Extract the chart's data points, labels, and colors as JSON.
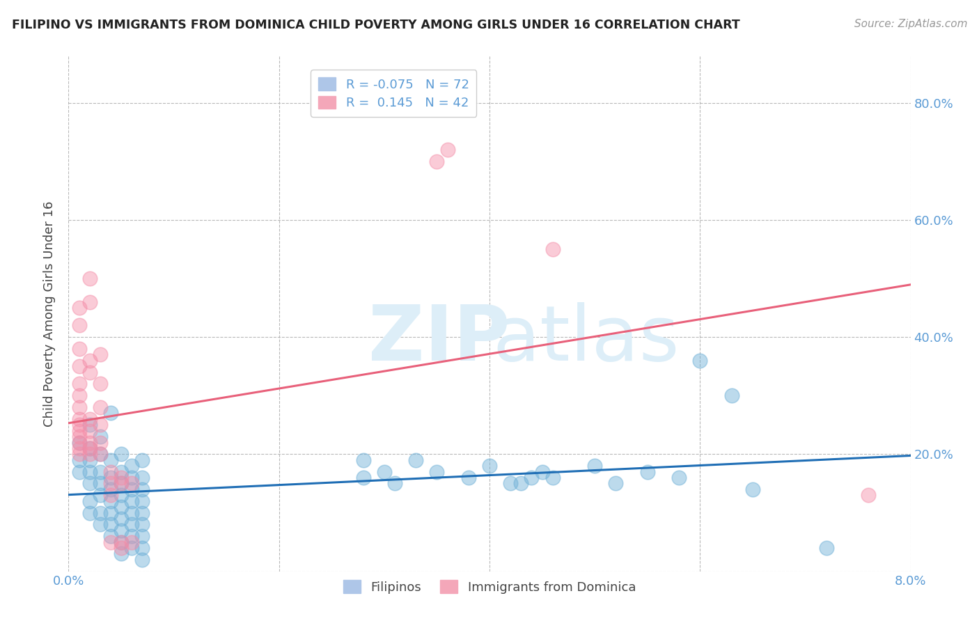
{
  "title": "FILIPINO VS IMMIGRANTS FROM DOMINICA CHILD POVERTY AMONG GIRLS UNDER 16 CORRELATION CHART",
  "source": "Source: ZipAtlas.com",
  "ylabel": "Child Poverty Among Girls Under 16",
  "xlim": [
    0.0,
    0.08
  ],
  "ylim": [
    0.0,
    0.88
  ],
  "filipino_color": "#6baed6",
  "dominica_color": "#f48ca7",
  "filipino_line_color": "#1f6eb5",
  "dominica_line_color": "#e8607a",
  "background_color": "#ffffff",
  "filipino_points": [
    [
      0.001,
      0.22
    ],
    [
      0.001,
      0.19
    ],
    [
      0.001,
      0.17
    ],
    [
      0.002,
      0.25
    ],
    [
      0.002,
      0.21
    ],
    [
      0.002,
      0.19
    ],
    [
      0.002,
      0.17
    ],
    [
      0.002,
      0.15
    ],
    [
      0.002,
      0.12
    ],
    [
      0.002,
      0.1
    ],
    [
      0.003,
      0.23
    ],
    [
      0.003,
      0.2
    ],
    [
      0.003,
      0.17
    ],
    [
      0.003,
      0.15
    ],
    [
      0.003,
      0.13
    ],
    [
      0.003,
      0.1
    ],
    [
      0.003,
      0.08
    ],
    [
      0.004,
      0.27
    ],
    [
      0.004,
      0.19
    ],
    [
      0.004,
      0.16
    ],
    [
      0.004,
      0.14
    ],
    [
      0.004,
      0.12
    ],
    [
      0.004,
      0.1
    ],
    [
      0.004,
      0.08
    ],
    [
      0.004,
      0.06
    ],
    [
      0.005,
      0.2
    ],
    [
      0.005,
      0.17
    ],
    [
      0.005,
      0.15
    ],
    [
      0.005,
      0.13
    ],
    [
      0.005,
      0.11
    ],
    [
      0.005,
      0.09
    ],
    [
      0.005,
      0.07
    ],
    [
      0.005,
      0.05
    ],
    [
      0.005,
      0.03
    ],
    [
      0.006,
      0.18
    ],
    [
      0.006,
      0.16
    ],
    [
      0.006,
      0.14
    ],
    [
      0.006,
      0.12
    ],
    [
      0.006,
      0.1
    ],
    [
      0.006,
      0.08
    ],
    [
      0.006,
      0.06
    ],
    [
      0.006,
      0.04
    ],
    [
      0.007,
      0.19
    ],
    [
      0.007,
      0.16
    ],
    [
      0.007,
      0.14
    ],
    [
      0.007,
      0.12
    ],
    [
      0.007,
      0.1
    ],
    [
      0.007,
      0.08
    ],
    [
      0.007,
      0.06
    ],
    [
      0.007,
      0.04
    ],
    [
      0.007,
      0.02
    ],
    [
      0.028,
      0.19
    ],
    [
      0.028,
      0.16
    ],
    [
      0.03,
      0.17
    ],
    [
      0.031,
      0.15
    ],
    [
      0.033,
      0.19
    ],
    [
      0.035,
      0.17
    ],
    [
      0.038,
      0.16
    ],
    [
      0.04,
      0.18
    ],
    [
      0.042,
      0.15
    ],
    [
      0.043,
      0.15
    ],
    [
      0.044,
      0.16
    ],
    [
      0.045,
      0.17
    ],
    [
      0.046,
      0.16
    ],
    [
      0.05,
      0.18
    ],
    [
      0.052,
      0.15
    ],
    [
      0.055,
      0.17
    ],
    [
      0.058,
      0.16
    ],
    [
      0.06,
      0.36
    ],
    [
      0.063,
      0.3
    ],
    [
      0.065,
      0.14
    ],
    [
      0.072,
      0.04
    ]
  ],
  "dominica_points": [
    [
      0.001,
      0.45
    ],
    [
      0.001,
      0.42
    ],
    [
      0.001,
      0.38
    ],
    [
      0.001,
      0.35
    ],
    [
      0.001,
      0.32
    ],
    [
      0.001,
      0.3
    ],
    [
      0.001,
      0.28
    ],
    [
      0.001,
      0.26
    ],
    [
      0.001,
      0.25
    ],
    [
      0.001,
      0.24
    ],
    [
      0.001,
      0.23
    ],
    [
      0.001,
      0.22
    ],
    [
      0.001,
      0.21
    ],
    [
      0.001,
      0.2
    ],
    [
      0.002,
      0.5
    ],
    [
      0.002,
      0.46
    ],
    [
      0.002,
      0.36
    ],
    [
      0.002,
      0.34
    ],
    [
      0.002,
      0.26
    ],
    [
      0.002,
      0.24
    ],
    [
      0.002,
      0.22
    ],
    [
      0.002,
      0.21
    ],
    [
      0.002,
      0.2
    ],
    [
      0.003,
      0.37
    ],
    [
      0.003,
      0.32
    ],
    [
      0.003,
      0.28
    ],
    [
      0.003,
      0.25
    ],
    [
      0.003,
      0.22
    ],
    [
      0.003,
      0.2
    ],
    [
      0.004,
      0.17
    ],
    [
      0.004,
      0.15
    ],
    [
      0.004,
      0.13
    ],
    [
      0.004,
      0.05
    ],
    [
      0.005,
      0.16
    ],
    [
      0.005,
      0.15
    ],
    [
      0.005,
      0.05
    ],
    [
      0.005,
      0.04
    ],
    [
      0.006,
      0.15
    ],
    [
      0.006,
      0.05
    ],
    [
      0.035,
      0.7
    ],
    [
      0.036,
      0.72
    ],
    [
      0.046,
      0.55
    ],
    [
      0.076,
      0.13
    ]
  ]
}
